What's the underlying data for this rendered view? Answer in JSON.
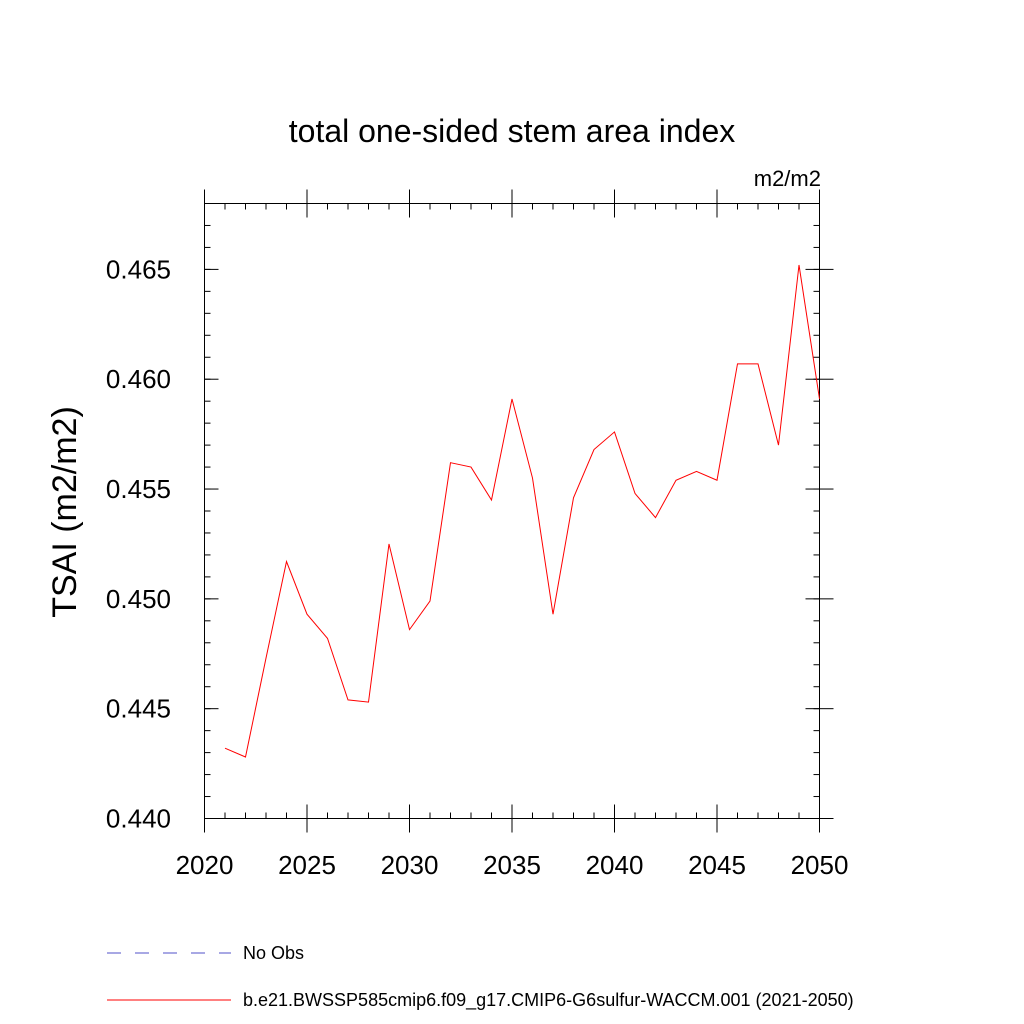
{
  "chart_data": {
    "type": "line",
    "title": "total one-sided stem area index",
    "units": "m2/m2",
    "ylabel": "TSAI  (m2/m2)",
    "xlabel": "",
    "xlim": [
      2020,
      2050
    ],
    "ylim": [
      0.44,
      0.468
    ],
    "xticks": [
      2020,
      2025,
      2030,
      2035,
      2040,
      2045,
      2050
    ],
    "xtick_labels": [
      "2020",
      "2025",
      "2030",
      "2035",
      "2040",
      "2045",
      "2050"
    ],
    "yticks": [
      0.44,
      0.445,
      0.45,
      0.455,
      0.46,
      0.465
    ],
    "ytick_labels": [
      "0.440",
      "0.445",
      "0.450",
      "0.455",
      "0.460",
      "0.465"
    ],
    "grid": false,
    "legend_position": "bottom",
    "series": [
      {
        "name": "b.e21.BWSSP585cmip6.f09_g17.CMIP6-G6sulfur-WACCM.001 (2021-2050)",
        "color": "#ff0000",
        "style": "solid",
        "x": [
          2021,
          2022,
          2023,
          2024,
          2025,
          2026,
          2027,
          2028,
          2029,
          2030,
          2031,
          2032,
          2033,
          2034,
          2035,
          2036,
          2037,
          2038,
          2039,
          2040,
          2041,
          2042,
          2043,
          2044,
          2045,
          2046,
          2047,
          2048,
          2049,
          2050
        ],
        "y": [
          0.4432,
          0.4428,
          0.4473,
          0.4517,
          0.4493,
          0.4482,
          0.4454,
          0.4453,
          0.4525,
          0.4486,
          0.4499,
          0.4562,
          0.456,
          0.4545,
          0.4591,
          0.4555,
          0.4493,
          0.4546,
          0.4568,
          0.4576,
          0.4548,
          0.4537,
          0.4554,
          0.4558,
          0.4554,
          0.4607,
          0.4607,
          0.457,
          0.4652,
          0.4591
        ]
      }
    ],
    "legend": [
      {
        "label": "No Obs",
        "color": "#5050c8",
        "style": "dashed"
      },
      {
        "label": "b.e21.BWSSP585cmip6.f09_g17.CMIP6-G6sulfur-WACCM.001 (2021-2050)",
        "color": "#ff0000",
        "style": "solid"
      }
    ]
  }
}
